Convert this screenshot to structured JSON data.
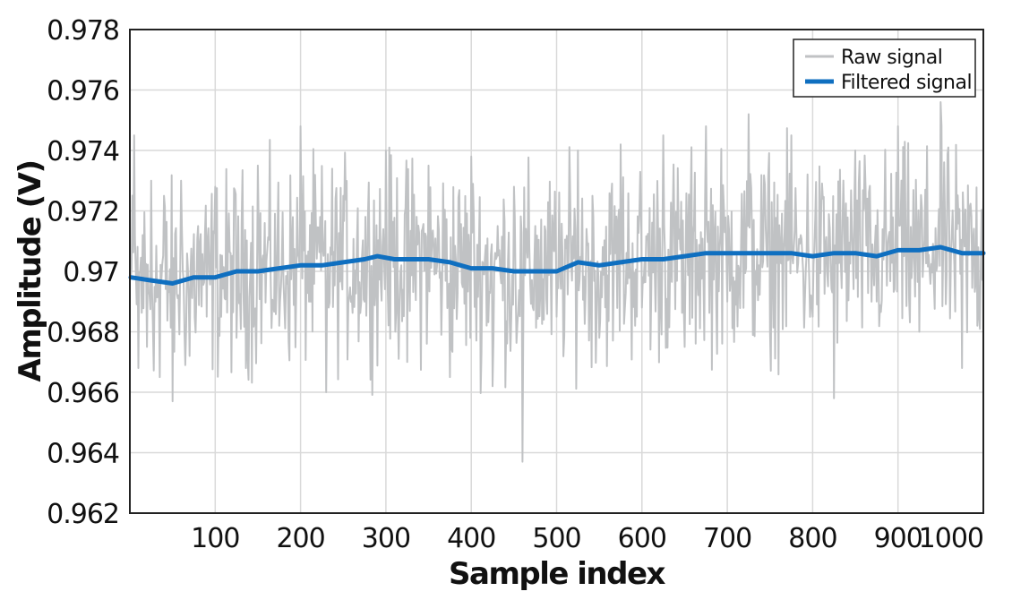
{
  "chart_data": {
    "type": "line",
    "xlabel": "Sample index",
    "ylabel": "Amplitude (V)",
    "xlim": [
      0,
      1000
    ],
    "ylim": [
      0.962,
      0.978
    ],
    "x_ticks": [
      100,
      200,
      300,
      400,
      500,
      600,
      700,
      800,
      900,
      1000
    ],
    "x_tick_labels": [
      "100",
      "200",
      "300",
      "400",
      "500",
      "600",
      "700",
      "800",
      "900",
      "1000"
    ],
    "y_ticks": [
      0.962,
      0.964,
      0.966,
      0.968,
      0.97,
      0.972,
      0.974,
      0.976,
      0.978
    ],
    "y_tick_labels": [
      "0.962",
      "0.964",
      "0.966",
      "0.968",
      "0.97",
      "0.972",
      "0.974",
      "0.976",
      "0.978"
    ],
    "grid": true,
    "legend_position": "top-right",
    "series": [
      {
        "name": "Raw signal",
        "color": "#c0c2c4",
        "description_of_values": "1000 noisy samples around the filtered trend, roughly ±0.003 V, extremes near 0.9637 (x≈460) and 0.9756 (x≈950)",
        "x": [
          1,
          5,
          10,
          15,
          20,
          25,
          30,
          35,
          40,
          50,
          60,
          70,
          80,
          90,
          100,
          125,
          150,
          175,
          200,
          230,
          250,
          275,
          300,
          325,
          350,
          375,
          400,
          425,
          450,
          460,
          475,
          500,
          525,
          550,
          575,
          600,
          625,
          650,
          675,
          700,
          725,
          750,
          775,
          800,
          825,
          850,
          875,
          900,
          925,
          950,
          975,
          1000
        ],
        "y": [
          0.9698,
          0.9745,
          0.9668,
          0.9712,
          0.9675,
          0.973,
          0.969,
          0.9665,
          0.9725,
          0.9657,
          0.973,
          0.9672,
          0.9715,
          0.9685,
          0.9728,
          0.9678,
          0.9735,
          0.9682,
          0.9748,
          0.966,
          0.9725,
          0.969,
          0.974,
          0.967,
          0.9735,
          0.9665,
          0.9738,
          0.9662,
          0.9728,
          0.9637,
          0.9715,
          0.9685,
          0.974,
          0.9678,
          0.9742,
          0.9688,
          0.9745,
          0.9675,
          0.9748,
          0.969,
          0.9752,
          0.968,
          0.9745,
          0.9685,
          0.9658,
          0.974,
          0.969,
          0.9748,
          0.968,
          0.9756,
          0.9668,
          0.9725
        ]
      },
      {
        "name": "Filtered signal",
        "color": "#0f6fc0",
        "x": [
          1,
          25,
          50,
          75,
          100,
          125,
          150,
          175,
          200,
          225,
          250,
          275,
          290,
          310,
          350,
          375,
          400,
          425,
          450,
          475,
          500,
          525,
          550,
          575,
          600,
          625,
          650,
          675,
          700,
          725,
          750,
          775,
          800,
          825,
          850,
          875,
          900,
          925,
          950,
          975,
          1000
        ],
        "y": [
          0.9698,
          0.9697,
          0.9696,
          0.9698,
          0.9698,
          0.97,
          0.97,
          0.9701,
          0.9702,
          0.9702,
          0.9703,
          0.9704,
          0.9705,
          0.9704,
          0.9704,
          0.9703,
          0.9701,
          0.9701,
          0.97,
          0.97,
          0.97,
          0.9703,
          0.9702,
          0.9703,
          0.9704,
          0.9704,
          0.9705,
          0.9706,
          0.9706,
          0.9706,
          0.9706,
          0.9706,
          0.9705,
          0.9706,
          0.9706,
          0.9705,
          0.9707,
          0.9707,
          0.9708,
          0.9706,
          0.9706
        ]
      }
    ]
  }
}
